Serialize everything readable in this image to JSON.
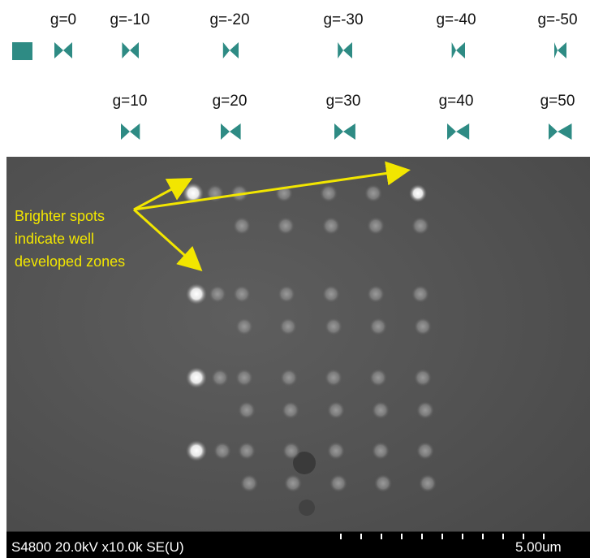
{
  "top_labels": [
    "g=0",
    "g=-10",
    "g=-20",
    "g=-30",
    "g=-40",
    "g=-50"
  ],
  "bottom_labels": [
    "g=10",
    "g=20",
    "g=30",
    "g=40",
    "g=50"
  ],
  "annotation": {
    "lines": [
      "Brighter spots",
      "indicate well",
      "developed zones"
    ]
  },
  "footer": {
    "info": "S4800 20.0kV x10.0k SE(U)",
    "scale": "5.00um"
  }
}
